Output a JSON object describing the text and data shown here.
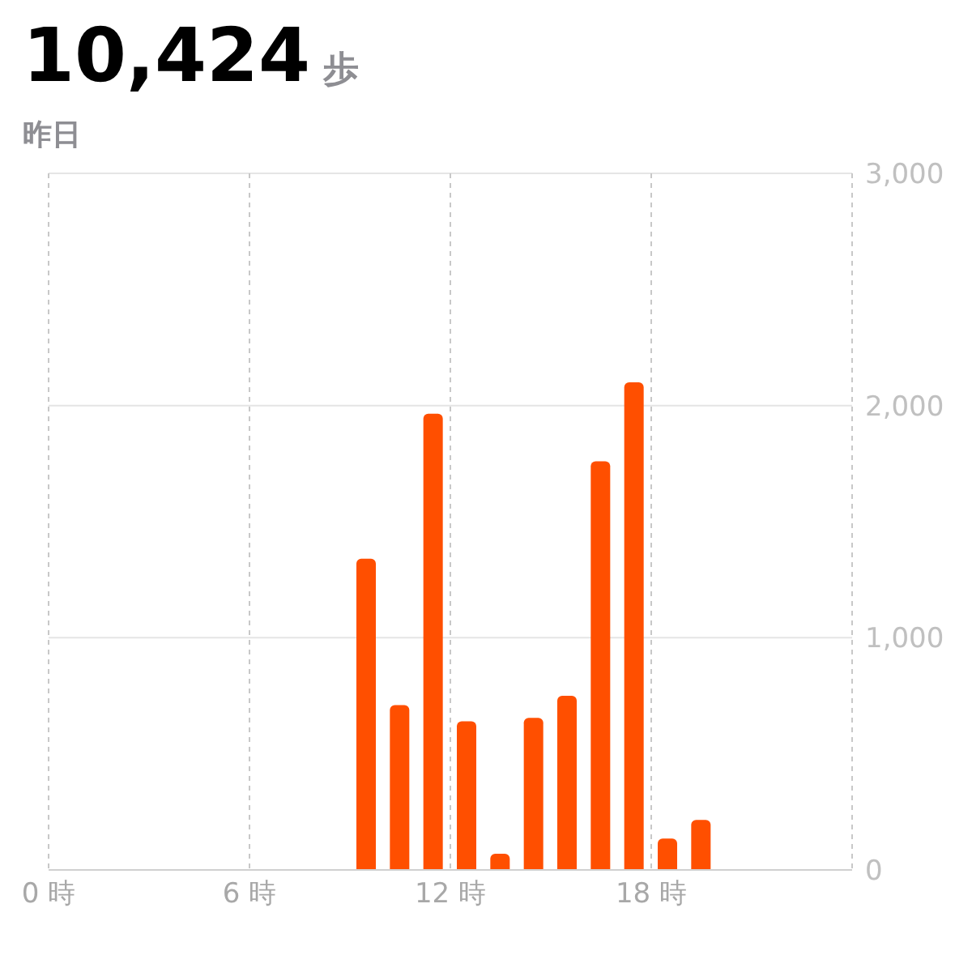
{
  "chart_data": {
    "type": "bar",
    "title": "10,424 歩",
    "subtitle": "昨日",
    "x": [
      9.5,
      10.5,
      11.5,
      12.5,
      13.5,
      14.5,
      15.5,
      16.5,
      17.5,
      18.5,
      19.5
    ],
    "values": [
      1340,
      710,
      1965,
      640,
      70,
      655,
      750,
      1760,
      2100,
      135,
      215
    ],
    "color": "#ff4f00",
    "xlim": [
      0,
      24
    ],
    "xticks": [
      {
        "value": 0,
        "label": "0 時"
      },
      {
        "value": 6,
        "label": "6 時"
      },
      {
        "value": 12,
        "label": "12 時"
      },
      {
        "value": 18,
        "label": "18 時"
      }
    ],
    "ylim": [
      0,
      3000
    ],
    "yticks": [
      0,
      {
        "value": 1000,
        "label": "1,000"
      },
      {
        "value": 2000,
        "label": "2,000"
      },
      {
        "value": 3000,
        "label": "3,000"
      }
    ],
    "grid": true
  }
}
